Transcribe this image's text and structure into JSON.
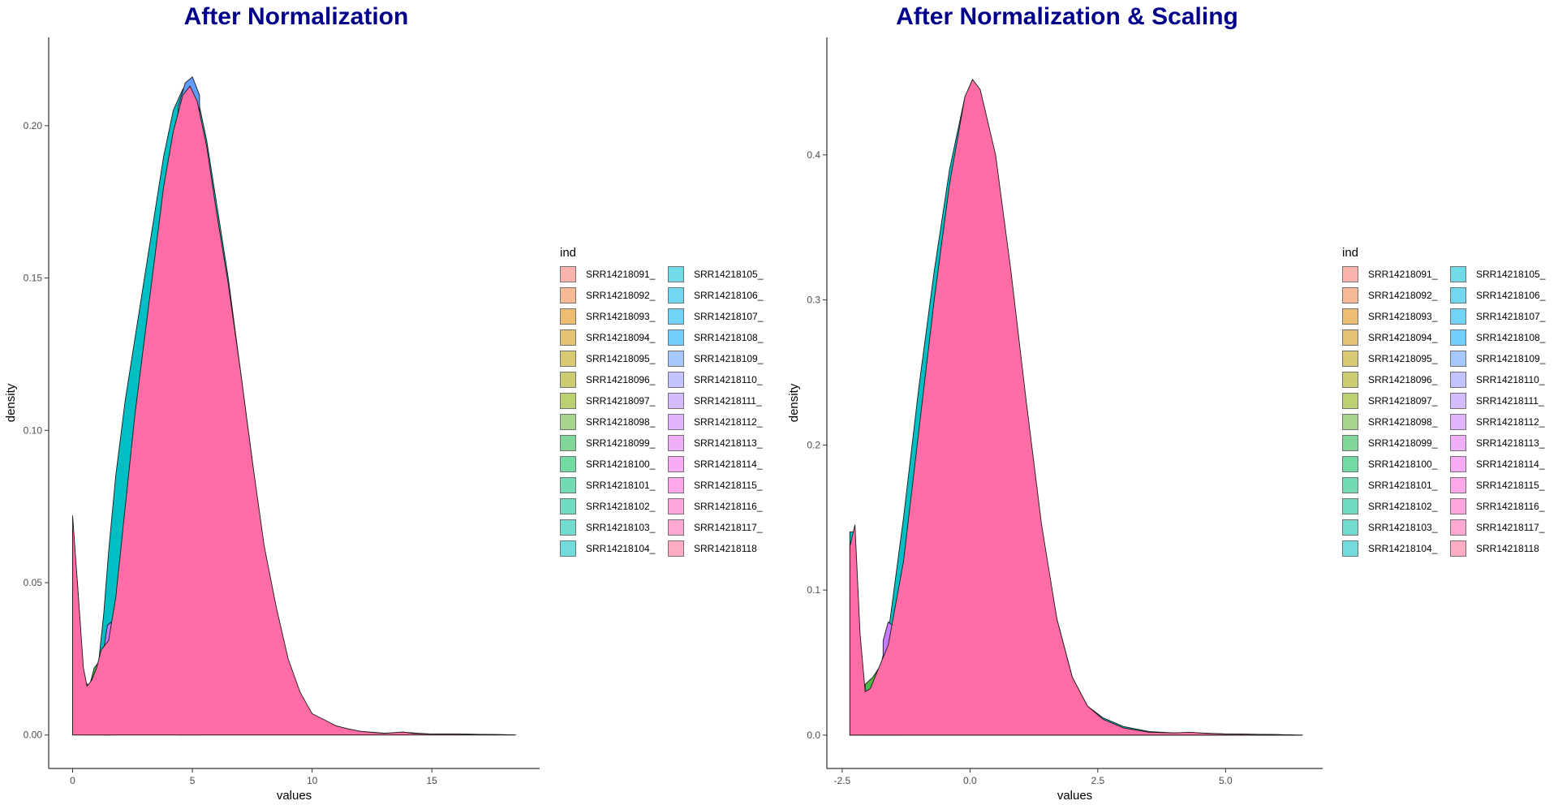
{
  "legend_title": "ind",
  "legend_entries": [
    {
      "label": "SRR14218091_",
      "color": "#F8766D"
    },
    {
      "label": "SRR14218092_",
      "color": "#EE8042"
    },
    {
      "label": "SRR14218093_",
      "color": "#E08A00"
    },
    {
      "label": "SRR14218094_",
      "color": "#CF9400"
    },
    {
      "label": "SRR14218095_",
      "color": "#BB9D00"
    },
    {
      "label": "SRR14218096_",
      "color": "#A3A500"
    },
    {
      "label": "SRR14218097_",
      "color": "#87AC00"
    },
    {
      "label": "SRR14218098_",
      "color": "#60B22F"
    },
    {
      "label": "SRR14218099_",
      "color": "#1BB846"
    },
    {
      "label": "SRR14218100_",
      "color": "#00BC59"
    },
    {
      "label": "SRR14218101_",
      "color": "#00BF76"
    },
    {
      "label": "SRR14218102_",
      "color": "#00C091"
    },
    {
      "label": "SRR14218103_",
      "color": "#00C0A8"
    },
    {
      "label": "SRR14218104_",
      "color": "#00BFBE"
    },
    {
      "label": "SRR14218105_",
      "color": "#00BCD2"
    },
    {
      "label": "SRR14218106_",
      "color": "#00B7E3"
    },
    {
      "label": "SRR14218107_",
      "color": "#00B0F2"
    },
    {
      "label": "SRR14218108_",
      "color": "#00A7FD"
    },
    {
      "label": "SRR14218109_",
      "color": "#5C9DFF"
    },
    {
      "label": "SRR14218110_",
      "color": "#8F91FF"
    },
    {
      "label": "SRR14218111_",
      "color": "#B385FF"
    },
    {
      "label": "SRR14218112_",
      "color": "#CE79FF"
    },
    {
      "label": "SRR14218113_",
      "color": "#E26EF7"
    },
    {
      "label": "SRR14218114_",
      "color": "#F066E9"
    },
    {
      "label": "SRR14218115_",
      "color": "#FA62D8"
    },
    {
      "label": "SRR14218116_",
      "color": "#FF61C4"
    },
    {
      "label": "SRR14218117_",
      "color": "#FF64AE"
    },
    {
      "label": "SRR14218118",
      "color": "#FF6A97"
    }
  ],
  "colors": {
    "title": "#00008B",
    "front_fill": "#FF6CA6",
    "teal_fill": "#00BFC4",
    "green_fill": "#4CB848",
    "purple_fill": "#C77CFF",
    "blue_fill": "#619CFF"
  },
  "chart_data": [
    {
      "type": "area",
      "title": "After Normalization",
      "xlabel": "values",
      "ylabel": "density",
      "xlim": [
        -1,
        19.5
      ],
      "ylim": [
        -0.011,
        0.229
      ],
      "xticks": [
        0,
        5,
        10,
        15
      ],
      "xtick_labels": [
        "0",
        "5",
        "10",
        "15"
      ],
      "yticks": [
        0.0,
        0.05,
        0.1,
        0.15,
        0.2
      ],
      "ytick_labels": [
        "0.00",
        "0.05",
        "0.10",
        "0.15",
        "0.20"
      ],
      "grid": false,
      "legend": "right",
      "series": [
        {
          "color": "#00BFC4",
          "x": [
            0,
            0.2,
            0.45,
            0.6,
            0.75,
            0.9,
            1.1,
            1.3,
            1.5,
            1.8,
            2.2,
            2.6,
            3.0,
            3.4,
            3.8,
            4.2,
            4.6,
            4.9,
            5.2,
            5.6,
            6.0,
            6.5,
            7.0,
            7.5,
            8.0,
            8.5,
            9.0,
            9.5,
            10.0,
            10.5,
            11.0,
            11.5,
            12.0,
            13.0,
            14.0,
            15.0,
            16.0,
            17.0,
            18.0,
            18.5
          ],
          "y": [
            0.068,
            0.05,
            0.02,
            0.008,
            0.005,
            0.01,
            0.025,
            0.04,
            0.06,
            0.085,
            0.11,
            0.13,
            0.15,
            0.17,
            0.19,
            0.205,
            0.212,
            0.214,
            0.21,
            0.195,
            0.175,
            0.15,
            0.12,
            0.09,
            0.06,
            0.04,
            0.022,
            0.012,
            0.006,
            0.004,
            0.003,
            0.002,
            0.0012,
            0.0006,
            0.0008,
            0.0003,
            0.0003,
            0.0002,
            0.0001,
            0.0
          ]
        },
        {
          "color": "#4CB848",
          "x": [
            0.45,
            0.7,
            0.9,
            1.1,
            1.3,
            1.5
          ],
          "y": [
            0.018,
            0.016,
            0.022,
            0.024,
            0.028,
            0.032
          ]
        },
        {
          "color": "#C77CFF",
          "x": [
            1.3,
            1.45,
            1.6,
            1.75
          ],
          "y": [
            0.028,
            0.036,
            0.037,
            0.032
          ]
        },
        {
          "color": "#619CFF",
          "x": [
            4.4,
            4.7,
            5.0,
            5.3
          ],
          "y": [
            0.206,
            0.214,
            0.216,
            0.21
          ]
        },
        {
          "color": "#FF6CA6",
          "x": [
            0,
            0.2,
            0.45,
            0.6,
            0.8,
            1.0,
            1.2,
            1.5,
            1.8,
            2.2,
            2.6,
            3.0,
            3.4,
            3.8,
            4.2,
            4.6,
            4.9,
            5.2,
            5.6,
            6.0,
            6.5,
            7.0,
            7.5,
            8.0,
            8.5,
            9.0,
            9.5,
            10.0,
            10.5,
            11.0,
            11.5,
            12.0,
            13.0,
            13.8,
            14.2,
            15.0,
            16.0,
            17.0,
            18.0,
            18.5
          ],
          "y": [
            0.072,
            0.05,
            0.022,
            0.016,
            0.018,
            0.022,
            0.028,
            0.031,
            0.045,
            0.075,
            0.105,
            0.13,
            0.155,
            0.18,
            0.198,
            0.21,
            0.213,
            0.208,
            0.193,
            0.172,
            0.148,
            0.12,
            0.09,
            0.062,
            0.042,
            0.025,
            0.014,
            0.007,
            0.005,
            0.003,
            0.002,
            0.0012,
            0.0005,
            0.001,
            0.0005,
            0.0003,
            0.0003,
            0.0002,
            0.0001,
            0.0
          ]
        }
      ]
    },
    {
      "type": "area",
      "title": "After Normalization & Scaling",
      "xlabel": "values",
      "ylabel": "density",
      "xlim": [
        -2.8,
        6.9
      ],
      "ylim": [
        -0.023,
        0.481
      ],
      "xticks": [
        -2.5,
        0.0,
        2.5,
        5.0
      ],
      "xtick_labels": [
        "-2.5",
        "0.0",
        "2.5",
        "5.0"
      ],
      "yticks": [
        0.0,
        0.1,
        0.2,
        0.3,
        0.4
      ],
      "ytick_labels": [
        "0.0",
        "0.1",
        "0.2",
        "0.3",
        "0.4"
      ],
      "grid": false,
      "legend": "right",
      "series": [
        {
          "color": "#00BFC4",
          "x": [
            -2.35,
            -2.25,
            -2.15,
            -2.05,
            -1.95,
            -1.8,
            -1.6,
            -1.3,
            -1.0,
            -0.7,
            -0.4,
            -0.1,
            0.05,
            0.2,
            0.5,
            0.8,
            1.1,
            1.4,
            1.7,
            2.0,
            2.3,
            2.6,
            3.0,
            3.5,
            4.0,
            4.5,
            5.0,
            5.5,
            6.0,
            6.5
          ],
          "y": [
            0.14,
            0.14,
            0.06,
            0.012,
            0.015,
            0.04,
            0.07,
            0.15,
            0.24,
            0.32,
            0.39,
            0.44,
            0.448,
            0.44,
            0.39,
            0.31,
            0.22,
            0.14,
            0.08,
            0.04,
            0.02,
            0.012,
            0.006,
            0.0025,
            0.0015,
            0.0015,
            0.0008,
            0.0006,
            0.0004,
            0.0
          ]
        },
        {
          "color": "#4CB848",
          "x": [
            -2.05,
            -1.9,
            -1.75,
            -1.6
          ],
          "y": [
            0.035,
            0.04,
            0.048,
            0.06
          ]
        },
        {
          "color": "#C77CFF",
          "x": [
            -1.7,
            -1.6,
            -1.5,
            -1.4
          ],
          "y": [
            0.065,
            0.078,
            0.075,
            0.065
          ]
        },
        {
          "color": "#FF6CA6",
          "x": [
            -2.35,
            -2.25,
            -2.15,
            -2.05,
            -1.95,
            -1.8,
            -1.6,
            -1.3,
            -1.0,
            -0.7,
            -0.4,
            -0.1,
            0.05,
            0.2,
            0.5,
            0.8,
            1.1,
            1.4,
            1.7,
            2.0,
            2.3,
            2.6,
            3.0,
            3.5,
            4.0,
            4.3,
            4.6,
            5.0,
            5.5,
            6.0,
            6.5
          ],
          "y": [
            0.13,
            0.145,
            0.07,
            0.03,
            0.032,
            0.045,
            0.062,
            0.12,
            0.21,
            0.3,
            0.38,
            0.44,
            0.452,
            0.445,
            0.4,
            0.32,
            0.23,
            0.145,
            0.08,
            0.04,
            0.02,
            0.011,
            0.005,
            0.002,
            0.0015,
            0.002,
            0.0012,
            0.0008,
            0.0006,
            0.0004,
            0.0
          ]
        }
      ]
    }
  ]
}
